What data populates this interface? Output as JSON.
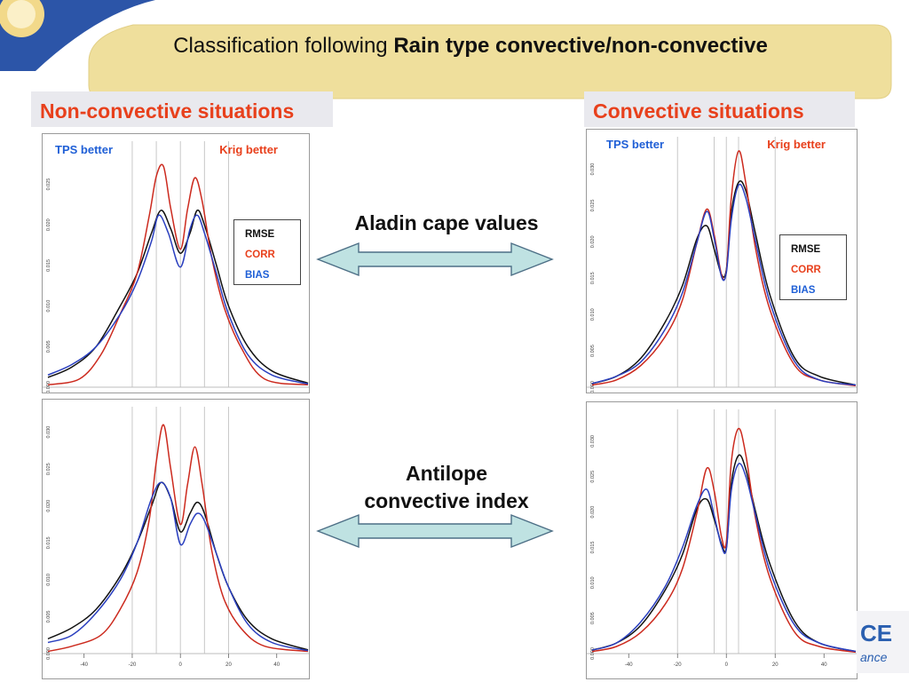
{
  "title": {
    "normal": "Classification following ",
    "bold": "Rain type convective",
    "tail": "/non-convective"
  },
  "sections": {
    "left": "Non-convective situations",
    "right": "Convective situations"
  },
  "corner_labels": {
    "tps": "TPS better",
    "krig": "Krig better"
  },
  "legend": {
    "rmse": "RMSE",
    "corr": "CORR",
    "bias": "BIAS"
  },
  "arrow_labels": {
    "top": "Aladin cape values",
    "bottom_line1": "Antilope",
    "bottom_line2": "convective index"
  },
  "logo": {
    "big": "CE",
    "small": "ance"
  },
  "colors": {
    "rmse": "#111111",
    "corr": "#cc2a1e",
    "bias": "#2a3fbf",
    "accent": "#e8401c",
    "tps": "#1f5fd6",
    "banner": "#efdf9c",
    "arrow_fill": "#bfe2e2"
  },
  "chart_data": [
    {
      "id": "nonconv_top",
      "type": "line",
      "xlim": [
        -55,
        53
      ],
      "ylim": [
        0,
        0.029
      ],
      "yticks": [
        "0.000",
        "0.005",
        "0.010",
        "0.015",
        "0.020",
        "0.025"
      ],
      "ytick_values": [
        0,
        0.005,
        0.01,
        0.015,
        0.02,
        0.025
      ],
      "xticks": [],
      "xtick_values": [],
      "vlines": [
        -20,
        -10,
        0,
        10,
        20
      ],
      "series": [
        {
          "name": "RMSE",
          "x": [
            -55,
            -45,
            -35,
            -25,
            -18,
            -12,
            -8,
            -4,
            0,
            4,
            7,
            10,
            15,
            20,
            28,
            38,
            53
          ],
          "y": [
            0.0012,
            0.0025,
            0.005,
            0.01,
            0.014,
            0.019,
            0.0218,
            0.0195,
            0.0165,
            0.019,
            0.0218,
            0.02,
            0.015,
            0.01,
            0.005,
            0.002,
            0.0005
          ]
        },
        {
          "name": "CORR",
          "x": [
            -55,
            -42,
            -33,
            -25,
            -18,
            -13,
            -10,
            -7,
            -4,
            0,
            3,
            6,
            9,
            13,
            18,
            25,
            35,
            53
          ],
          "y": [
            0.0003,
            0.001,
            0.004,
            0.009,
            0.014,
            0.021,
            0.026,
            0.0272,
            0.022,
            0.017,
            0.022,
            0.0258,
            0.023,
            0.016,
            0.01,
            0.005,
            0.001,
            0.0003
          ]
        },
        {
          "name": "BIAS",
          "x": [
            -55,
            -45,
            -35,
            -25,
            -18,
            -12,
            -9,
            -5,
            0,
            4,
            7,
            10,
            15,
            20,
            28,
            38,
            53
          ],
          "y": [
            0.0015,
            0.0028,
            0.005,
            0.009,
            0.013,
            0.018,
            0.0212,
            0.019,
            0.0148,
            0.0195,
            0.0212,
            0.019,
            0.014,
            0.009,
            0.004,
            0.0015,
            0.0004
          ]
        }
      ]
    },
    {
      "id": "nonconv_bottom",
      "type": "line",
      "xlim": [
        -55,
        53
      ],
      "ylim": [
        0,
        0.032
      ],
      "yticks": [
        "0.000",
        "0.005",
        "0.010",
        "0.015",
        "0.020",
        "0.025",
        "0.030"
      ],
      "ytick_values": [
        0,
        0.005,
        0.01,
        0.015,
        0.02,
        0.025,
        0.03
      ],
      "xticks": [
        "-40",
        "-20",
        "0",
        "20",
        "40"
      ],
      "xtick_values": [
        -40,
        -20,
        0,
        20,
        40
      ],
      "vlines": [
        -20,
        -10,
        0,
        10,
        20
      ],
      "series": [
        {
          "name": "RMSE",
          "x": [
            -55,
            -45,
            -35,
            -25,
            -18,
            -12,
            -8,
            -4,
            0,
            4,
            7,
            10,
            15,
            20,
            28,
            38,
            53
          ],
          "y": [
            0.002,
            0.0035,
            0.006,
            0.0105,
            0.015,
            0.02,
            0.0232,
            0.021,
            0.0165,
            0.019,
            0.0205,
            0.019,
            0.0135,
            0.009,
            0.0045,
            0.002,
            0.0005
          ]
        },
        {
          "name": "CORR",
          "x": [
            -55,
            -45,
            -33,
            -25,
            -18,
            -13,
            -10,
            -7,
            -4,
            0,
            3,
            6,
            9,
            13,
            18,
            25,
            35,
            53
          ],
          "y": [
            0.0003,
            0.001,
            0.0025,
            0.006,
            0.011,
            0.018,
            0.026,
            0.031,
            0.025,
            0.0175,
            0.023,
            0.028,
            0.023,
            0.014,
            0.0075,
            0.0035,
            0.001,
            0.0003
          ]
        },
        {
          "name": "BIAS",
          "x": [
            -55,
            -45,
            -35,
            -25,
            -18,
            -12,
            -8,
            -4,
            0,
            4,
            7,
            10,
            15,
            20,
            28,
            38,
            53
          ],
          "y": [
            0.0015,
            0.0025,
            0.0055,
            0.01,
            0.015,
            0.021,
            0.0232,
            0.021,
            0.0148,
            0.0175,
            0.019,
            0.018,
            0.0135,
            0.009,
            0.004,
            0.0015,
            0.0004
          ]
        }
      ]
    },
    {
      "id": "conv_top",
      "type": "line",
      "xlim": [
        -55,
        53
      ],
      "ylim": [
        0,
        0.033
      ],
      "yticks": [
        "0.000",
        "0.005",
        "0.010",
        "0.015",
        "0.020",
        "0.025",
        "0.030"
      ],
      "ytick_values": [
        0,
        0.005,
        0.01,
        0.015,
        0.02,
        0.025,
        0.03
      ],
      "xticks": [],
      "xtick_values": [],
      "vlines": [
        -20,
        -5,
        0,
        5,
        20
      ],
      "series": [
        {
          "name": "RMSE",
          "x": [
            -55,
            -45,
            -35,
            -25,
            -18,
            -12,
            -8,
            -5,
            -2,
            0,
            2,
            5,
            8,
            12,
            18,
            28,
            38,
            53
          ],
          "y": [
            0.0005,
            0.0015,
            0.004,
            0.009,
            0.014,
            0.0205,
            0.0222,
            0.019,
            0.0155,
            0.0162,
            0.024,
            0.0282,
            0.027,
            0.021,
            0.0125,
            0.004,
            0.0015,
            0.0003
          ]
        },
        {
          "name": "CORR",
          "x": [
            -55,
            -45,
            -35,
            -25,
            -18,
            -12,
            -8,
            -5,
            -2,
            0,
            2,
            5,
            8,
            12,
            18,
            28,
            38,
            53
          ],
          "y": [
            0.0003,
            0.001,
            0.003,
            0.007,
            0.012,
            0.02,
            0.0245,
            0.021,
            0.0155,
            0.016,
            0.026,
            0.0325,
            0.028,
            0.019,
            0.0105,
            0.003,
            0.001,
            0.0002
          ]
        },
        {
          "name": "BIAS",
          "x": [
            -55,
            -45,
            -35,
            -25,
            -18,
            -12,
            -8,
            -5,
            -2,
            0,
            2,
            5,
            8,
            12,
            18,
            28,
            38,
            53
          ],
          "y": [
            0.0005,
            0.0015,
            0.0035,
            0.008,
            0.013,
            0.02,
            0.0242,
            0.0205,
            0.0152,
            0.0158,
            0.023,
            0.0278,
            0.026,
            0.02,
            0.0115,
            0.0035,
            0.001,
            0.0003
          ]
        }
      ]
    },
    {
      "id": "conv_bottom",
      "type": "line",
      "xlim": [
        -55,
        53
      ],
      "ylim": [
        0,
        0.033
      ],
      "yticks": [
        "0.000",
        "0.005",
        "0.010",
        "0.015",
        "0.020",
        "0.025",
        "0.030"
      ],
      "ytick_values": [
        0,
        0.005,
        0.01,
        0.015,
        0.02,
        0.025,
        0.03
      ],
      "xticks": [
        "-40",
        "-20",
        "0",
        "20",
        "40"
      ],
      "xtick_values": [
        -40,
        -20,
        0,
        20,
        40
      ],
      "vlines": [
        -20,
        -5,
        0,
        5,
        20
      ],
      "series": [
        {
          "name": "RMSE",
          "x": [
            -55,
            -45,
            -35,
            -25,
            -18,
            -12,
            -8,
            -5,
            -2,
            0,
            2,
            5,
            8,
            12,
            18,
            28,
            38,
            53
          ],
          "y": [
            0.0005,
            0.0015,
            0.004,
            0.009,
            0.014,
            0.0205,
            0.0218,
            0.019,
            0.0155,
            0.015,
            0.024,
            0.028,
            0.026,
            0.02,
            0.0125,
            0.0045,
            0.0015,
            0.0003
          ]
        },
        {
          "name": "CORR",
          "x": [
            -55,
            -45,
            -35,
            -25,
            -18,
            -12,
            -8,
            -5,
            -2,
            0,
            2,
            5,
            8,
            12,
            18,
            28,
            38,
            53
          ],
          "y": [
            0.0003,
            0.001,
            0.003,
            0.007,
            0.012,
            0.02,
            0.0262,
            0.023,
            0.0165,
            0.0158,
            0.027,
            0.0318,
            0.028,
            0.019,
            0.0105,
            0.003,
            0.001,
            0.0002
          ]
        },
        {
          "name": "BIAS",
          "x": [
            -55,
            -45,
            -35,
            -25,
            -18,
            -12,
            -8,
            -5,
            -2,
            0,
            2,
            5,
            8,
            12,
            18,
            28,
            38,
            53
          ],
          "y": [
            0.0005,
            0.0015,
            0.0045,
            0.0095,
            0.015,
            0.021,
            0.0232,
            0.0195,
            0.0152,
            0.0148,
            0.023,
            0.0268,
            0.025,
            0.0195,
            0.0115,
            0.004,
            0.0015,
            0.0003
          ]
        }
      ]
    }
  ]
}
